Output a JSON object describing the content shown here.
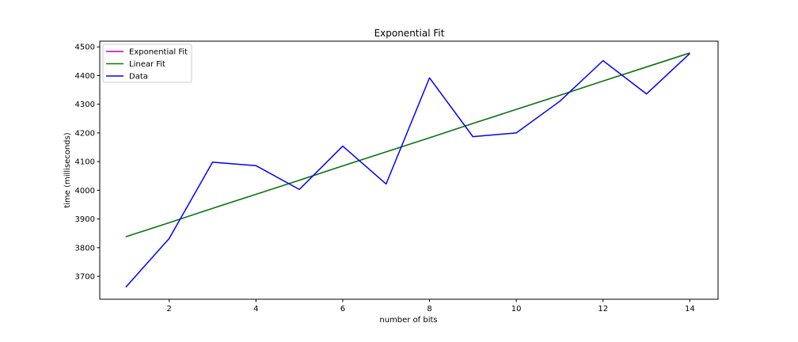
{
  "chart_data": {
    "type": "line",
    "title": "Exponential Fit",
    "xlabel": "number of bits",
    "ylabel": "time (milliseconds)",
    "xlim": [
      0.4,
      14.65
    ],
    "ylim": [
      3620,
      4520
    ],
    "xticks": [
      2,
      4,
      6,
      8,
      10,
      12,
      14
    ],
    "yticks": [
      3700,
      3800,
      3900,
      4000,
      4100,
      4200,
      4300,
      4400,
      4500
    ],
    "grid": false,
    "legend_position": "upper-left",
    "x": [
      1,
      2,
      3,
      4,
      5,
      6,
      7,
      8,
      9,
      10,
      11,
      12,
      13,
      14
    ],
    "series": [
      {
        "name": "Exponential Fit",
        "color": "#bf00bf",
        "values": [
          3838,
          3887,
          3937,
          3986,
          4035,
          4085,
          4134,
          4183,
          4233,
          4282,
          4331,
          4381,
          4430,
          4479
        ]
      },
      {
        "name": "Linear Fit",
        "color": "#008000",
        "values": [
          3838,
          3887,
          3937,
          3986,
          4035,
          4085,
          4134,
          4183,
          4233,
          4282,
          4331,
          4381,
          4430,
          4479
        ]
      },
      {
        "name": "Data",
        "color": "#0000ff",
        "values": [
          3662,
          3832,
          4098,
          4086,
          4003,
          4154,
          4022,
          4392,
          4187,
          4200,
          4310,
          4452,
          4336,
          4477
        ]
      }
    ]
  }
}
